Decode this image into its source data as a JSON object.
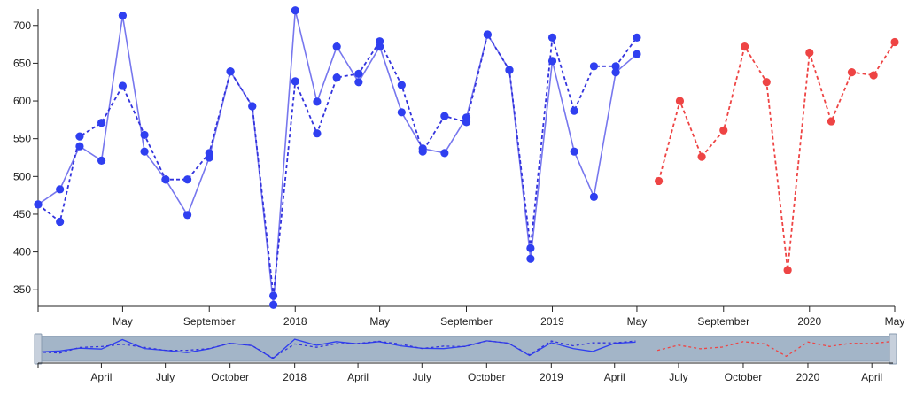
{
  "chart_data": {
    "type": "line",
    "title": "",
    "xlabel": "",
    "ylabel": "",
    "ylim": [
      328,
      722
    ],
    "y_ticks": [
      350,
      400,
      450,
      500,
      550,
      600,
      650,
      700
    ],
    "x_range": [
      "2017-01-01",
      "2020-05-01"
    ],
    "x_tick_labels": [
      {
        "date": "2017-05-01",
        "label": "May"
      },
      {
        "date": "2017-09-01",
        "label": "September"
      },
      {
        "date": "2018-01-01",
        "label": "2018"
      },
      {
        "date": "2018-05-01",
        "label": "May"
      },
      {
        "date": "2018-09-01",
        "label": "September"
      },
      {
        "date": "2019-01-01",
        "label": "2019"
      },
      {
        "date": "2019-05-01",
        "label": "May"
      },
      {
        "date": "2019-09-01",
        "label": "September"
      },
      {
        "date": "2020-01-01",
        "label": "2020"
      },
      {
        "date": "2020-05-01",
        "label": "May"
      }
    ],
    "series": [
      {
        "style": "solid",
        "color": "#7777ee",
        "markers": true,
        "x": [
          "2017-01-01",
          "2017-02-01",
          "2017-03-01",
          "2017-04-01",
          "2017-05-01",
          "2017-06-01",
          "2017-07-01",
          "2017-08-01",
          "2017-09-01",
          "2017-10-01",
          "2017-11-01",
          "2017-12-01",
          "2018-01-01",
          "2018-02-01",
          "2018-03-01",
          "2018-04-01",
          "2018-05-01",
          "2018-06-01",
          "2018-07-01",
          "2018-08-01",
          "2018-09-01",
          "2018-10-01",
          "2018-11-01",
          "2018-12-01",
          "2019-01-01",
          "2019-02-01",
          "2019-03-01",
          "2019-04-01",
          "2019-05-01"
        ],
        "values": [
          463,
          483,
          540,
          521,
          713,
          533,
          496,
          449,
          525,
          639,
          593,
          330,
          720,
          599,
          672,
          625,
          672,
          585,
          537,
          531,
          578,
          688,
          641,
          391,
          653,
          533,
          473,
          638,
          662
        ]
      },
      {
        "style": "dashed",
        "color": "#3333dd",
        "markers": true,
        "x": [
          "2017-01-01",
          "2017-02-01",
          "2017-03-01",
          "2017-04-01",
          "2017-05-01",
          "2017-06-01",
          "2017-07-01",
          "2017-08-01",
          "2017-09-01",
          "2017-10-01",
          "2017-11-01",
          "2017-12-01",
          "2018-01-01",
          "2018-02-01",
          "2018-03-01",
          "2018-04-01",
          "2018-05-01",
          "2018-06-01",
          "2018-07-01",
          "2018-08-01",
          "2018-09-01",
          "2018-10-01",
          "2018-11-01",
          "2018-12-01",
          "2019-01-01",
          "2019-02-01",
          "2019-03-01",
          "2019-04-01",
          "2019-05-01"
        ],
        "values": [
          463,
          440,
          553,
          571,
          620,
          555,
          496,
          496,
          531,
          639,
          593,
          342,
          626,
          557,
          631,
          636,
          679,
          621,
          533,
          580,
          572,
          688,
          641,
          405,
          684,
          587,
          646,
          646,
          684
        ]
      },
      {
        "style": "dashed",
        "color": "#ee4444",
        "markers": true,
        "x": [
          "2019-06-01",
          "2019-07-01",
          "2019-08-01",
          "2019-09-01",
          "2019-10-01",
          "2019-11-01",
          "2019-12-01",
          "2020-01-01",
          "2020-02-01",
          "2020-03-01",
          "2020-04-01",
          "2020-05-01"
        ],
        "values": [
          494,
          600,
          526,
          561,
          672,
          625,
          376,
          664,
          573,
          638,
          634,
          678
        ]
      }
    ],
    "navigator": {
      "x_range": [
        "2017-01-01",
        "2020-05-01"
      ],
      "x_tick_labels": [
        {
          "date": "2017-04-01",
          "label": "April"
        },
        {
          "date": "2017-07-01",
          "label": "July"
        },
        {
          "date": "2017-10-01",
          "label": "October"
        },
        {
          "date": "2018-01-01",
          "label": "2018"
        },
        {
          "date": "2018-04-01",
          "label": "April"
        },
        {
          "date": "2018-07-01",
          "label": "July"
        },
        {
          "date": "2018-10-01",
          "label": "October"
        },
        {
          "date": "2019-01-01",
          "label": "2019"
        },
        {
          "date": "2019-04-01",
          "label": "April"
        },
        {
          "date": "2019-07-01",
          "label": "July"
        },
        {
          "date": "2019-10-01",
          "label": "October"
        },
        {
          "date": "2020-01-01",
          "label": "2020"
        },
        {
          "date": "2020-04-01",
          "label": "April"
        }
      ],
      "selection_fill": "#a3b5c8"
    }
  }
}
